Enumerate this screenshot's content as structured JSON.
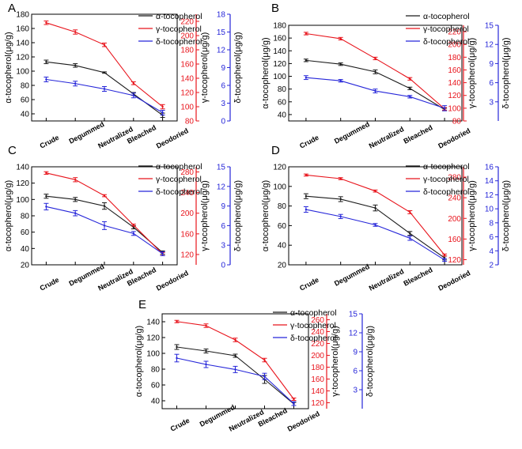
{
  "colors": {
    "alpha": "#1a1a1a",
    "gamma": "#e8141c",
    "delta": "#2626d9"
  },
  "chart_data": [
    {
      "panel": "A",
      "type": "line",
      "categories": [
        "Crude",
        "Degummed",
        "Neutralized",
        "Bleached",
        "Deodoried"
      ],
      "left_axis": {
        "label": "α-tocopherol(μg/g)",
        "lim": [
          30,
          180
        ],
        "ticks": [
          40,
          60,
          80,
          100,
          120,
          140,
          160,
          180
        ]
      },
      "right_axis_1": {
        "label": "γ-tocopherol(μg/g)",
        "lim": [
          80,
          230
        ],
        "ticks": [
          80,
          100,
          120,
          140,
          160,
          180,
          200,
          220
        ]
      },
      "right_axis_2": {
        "label": "δ-tocopherol(μg/g)",
        "lim": [
          0,
          18
        ],
        "ticks": [
          0,
          3,
          6,
          9,
          12,
          15,
          18
        ]
      },
      "series": [
        {
          "name": "α-tocopherol",
          "axis": "left",
          "values": [
            113,
            108,
            98,
            68,
            38
          ],
          "errors": [
            2.5,
            2.5,
            1,
            2,
            3
          ]
        },
        {
          "name": "γ-tocopherol",
          "axis": "right_1",
          "values": [
            218,
            205,
            187,
            133,
            100
          ],
          "errors": [
            2.5,
            3,
            2.5,
            2,
            3
          ]
        },
        {
          "name": "δ-tocopherol",
          "axis": "right_2",
          "values": [
            7.0,
            6.3,
            5.4,
            4.3,
            1.4
          ],
          "errors": [
            0.4,
            0.4,
            0.4,
            0.4,
            0.4
          ]
        }
      ]
    },
    {
      "panel": "B",
      "type": "line",
      "categories": [
        "Crude",
        "Degummed",
        "Neutralized",
        "Bleached",
        "Deodoried"
      ],
      "left_axis": {
        "label": "α-tocopherol(μg/g)",
        "lim": [
          30,
          180
        ],
        "ticks": [
          40,
          60,
          80,
          100,
          120,
          140,
          160,
          180
        ]
      },
      "right_axis_1": {
        "label": "γ-tocopherol(μg/g)",
        "lim": [
          80,
          230
        ],
        "ticks": [
          80,
          100,
          120,
          140,
          160,
          180,
          200,
          220
        ]
      },
      "right_axis_2": {
        "label": "δ-tocopherol(μg/g)",
        "lim": [
          0,
          15
        ],
        "ticks": [
          3,
          6,
          9,
          12,
          15
        ]
      },
      "series": [
        {
          "name": "α-tocopherol",
          "axis": "left",
          "values": [
            125,
            119,
            107,
            81,
            48
          ],
          "errors": [
            2,
            2,
            3,
            2,
            2
          ]
        },
        {
          "name": "γ-tocopherol",
          "axis": "right_1",
          "values": [
            217,
            209,
            178,
            146,
            99
          ],
          "errors": [
            2,
            2,
            2,
            2,
            2
          ]
        },
        {
          "name": "δ-tocopherol",
          "axis": "right_2",
          "values": [
            6.8,
            6.3,
            4.7,
            3.8,
            2.0
          ],
          "errors": [
            0.3,
            0.2,
            0.3,
            0.2,
            0.4
          ]
        }
      ]
    },
    {
      "panel": "C",
      "type": "line",
      "categories": [
        "Crude",
        "Degummed",
        "Neutralized",
        "Bleached",
        "Deodoried"
      ],
      "left_axis": {
        "label": "α-tocopherol(μg/g)",
        "lim": [
          20,
          140
        ],
        "ticks": [
          20,
          40,
          60,
          80,
          100,
          120,
          140
        ]
      },
      "right_axis_1": {
        "label": "γ-tocopherol(μg/g)",
        "lim": [
          100,
          290
        ],
        "ticks": [
          120,
          160,
          200,
          240,
          280
        ]
      },
      "right_axis_2": {
        "label": "δ-tocopherol(μg/g)",
        "lim": [
          0,
          15
        ],
        "ticks": [
          0,
          3,
          6,
          9,
          12,
          15
        ]
      },
      "series": [
        {
          "name": "α-tocopherol",
          "axis": "left",
          "values": [
            104,
            100,
            92,
            66,
            35
          ],
          "errors": [
            2.5,
            2.5,
            4,
            2,
            2
          ]
        },
        {
          "name": "γ-tocopherol",
          "axis": "right_1",
          "values": [
            278,
            265,
            234,
            177,
            121
          ],
          "errors": [
            2.5,
            4,
            2,
            2,
            3
          ]
        },
        {
          "name": "δ-tocopherol",
          "axis": "right_2",
          "values": [
            8.9,
            7.9,
            6.0,
            4.8,
            1.7
          ],
          "errors": [
            0.5,
            0.4,
            0.6,
            0.3,
            0.3
          ]
        }
      ]
    },
    {
      "panel": "D",
      "type": "line",
      "categories": [
        "Crude",
        "Degummed",
        "Neutralized",
        "Bleached",
        "Deodoried"
      ],
      "left_axis": {
        "label": "α-tocopherol(μg/g)",
        "lim": [
          20,
          120
        ],
        "ticks": [
          20,
          40,
          60,
          80,
          100,
          120
        ]
      },
      "right_axis_1": {
        "label": "γ-tocopherol(μg/g)",
        "lim": [
          110,
          300
        ],
        "ticks": [
          120,
          160,
          200,
          240,
          280
        ]
      },
      "right_axis_2": {
        "label": "δ-tocopherol(μg/g)",
        "lim": [
          2,
          16
        ],
        "ticks": [
          2,
          4,
          6,
          8,
          10,
          12,
          14,
          16
        ]
      },
      "series": [
        {
          "name": "α-tocopherol",
          "axis": "left",
          "values": [
            90,
            87,
            78,
            52,
            27
          ],
          "errors": [
            2.5,
            2.5,
            3,
            2,
            2
          ]
        },
        {
          "name": "γ-tocopherol",
          "axis": "right_1",
          "values": [
            284,
            277,
            253,
            212,
            129
          ],
          "errors": [
            2,
            2,
            2,
            3,
            2
          ]
        },
        {
          "name": "δ-tocopherol",
          "axis": "right_2",
          "values": [
            9.9,
            8.9,
            7.7,
            5.8,
            2.7
          ],
          "errors": [
            0.4,
            0.3,
            0.2,
            0.3,
            0.2
          ]
        }
      ]
    },
    {
      "panel": "E",
      "type": "line",
      "categories": [
        "Crude",
        "Degummed",
        "Neutralized",
        "Bleached",
        "Deodoried"
      ],
      "left_axis": {
        "label": "α-tocopherol(μg/g)",
        "lim": [
          30,
          150
        ],
        "ticks": [
          40,
          60,
          80,
          100,
          120,
          140
        ]
      },
      "right_axis_1": {
        "label": "γ-tocopherol(μg/g)",
        "lim": [
          110,
          270
        ],
        "ticks": [
          120,
          140,
          160,
          180,
          200,
          220,
          240,
          260
        ]
      },
      "right_axis_2": {
        "label": "δ-tocopherol(μg/g)",
        "lim": [
          0,
          15
        ],
        "ticks": [
          3,
          6,
          9,
          12,
          15
        ]
      },
      "series": [
        {
          "name": "α-tocopherol",
          "axis": "left",
          "values": [
            108,
            103,
            97,
            67,
            36
          ],
          "errors": [
            3,
            2.5,
            2,
            5,
            2
          ]
        },
        {
          "name": "γ-tocopherol",
          "axis": "right_1",
          "values": [
            257,
            250,
            226,
            192,
            126
          ],
          "errors": [
            2,
            3,
            3,
            3,
            2
          ]
        },
        {
          "name": "δ-tocopherol",
          "axis": "right_2",
          "values": [
            8.0,
            7.0,
            6.2,
            5.1,
            0.8
          ],
          "errors": [
            0.6,
            0.5,
            0.5,
            0.5,
            0.3
          ]
        }
      ]
    }
  ]
}
